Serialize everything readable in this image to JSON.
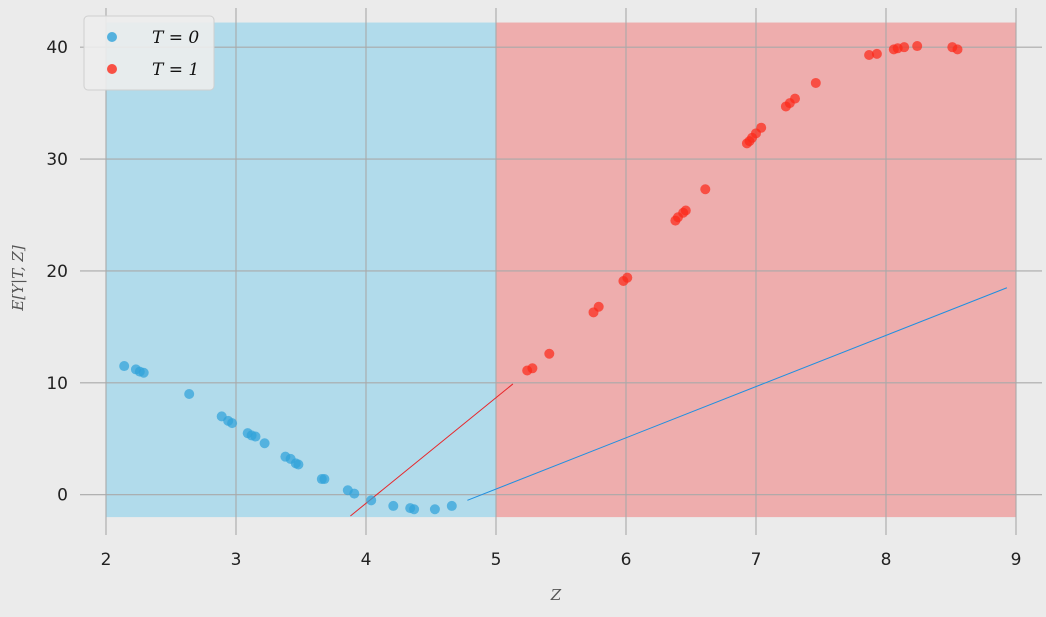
{
  "chart_data": {
    "type": "scatter",
    "xlabel": "Z",
    "ylabel": "E[Y|T, Z]",
    "xlim": [
      1.8,
      9.2
    ],
    "ylim": [
      -3.6,
      43.5
    ],
    "xticks": [
      2,
      3,
      4,
      5,
      6,
      7,
      8,
      9
    ],
    "yticks": [
      0,
      10,
      20,
      30,
      40
    ],
    "grid": true,
    "legend_position": "top-left",
    "regions": [
      {
        "name": "T=0 region",
        "x0": 2.0,
        "x1": 5.0,
        "y0": -2.0,
        "y1": 42.2,
        "color": "#87ceeb"
      },
      {
        "name": "T=1 region",
        "x0": 5.0,
        "x1": 9.0,
        "y0": -2.0,
        "y1": 42.2,
        "color": "#f08080"
      }
    ],
    "lines": [
      {
        "series": "T=1",
        "x": [
          3.88,
          5.13
        ],
        "y": [
          -1.9,
          9.9
        ],
        "color": "#e8262a"
      },
      {
        "series": "T=0",
        "x": [
          4.78,
          8.93
        ],
        "y": [
          -0.5,
          18.5
        ],
        "color": "#1f8fe0"
      }
    ],
    "series": [
      {
        "name": "T = 0",
        "color": "#30a2da",
        "points": [
          [
            2.14,
            11.5
          ],
          [
            2.23,
            11.2
          ],
          [
            2.26,
            11.0
          ],
          [
            2.29,
            10.9
          ],
          [
            2.64,
            9.0
          ],
          [
            2.89,
            7.0
          ],
          [
            2.94,
            6.6
          ],
          [
            2.97,
            6.4
          ],
          [
            3.09,
            5.5
          ],
          [
            3.12,
            5.3
          ],
          [
            3.15,
            5.2
          ],
          [
            3.22,
            4.6
          ],
          [
            3.38,
            3.4
          ],
          [
            3.42,
            3.2
          ],
          [
            3.46,
            2.8
          ],
          [
            3.48,
            2.7
          ],
          [
            3.66,
            1.4
          ],
          [
            3.68,
            1.4
          ],
          [
            3.86,
            0.4
          ],
          [
            3.91,
            0.1
          ],
          [
            4.04,
            -0.5
          ],
          [
            4.21,
            -1.0
          ],
          [
            4.34,
            -1.2
          ],
          [
            4.37,
            -1.3
          ],
          [
            4.53,
            -1.3
          ],
          [
            4.66,
            -1.0
          ]
        ]
      },
      {
        "name": "T = 1",
        "color": "#fc2a1a",
        "points": [
          [
            5.24,
            11.1
          ],
          [
            5.28,
            11.3
          ],
          [
            5.41,
            12.6
          ],
          [
            5.75,
            16.3
          ],
          [
            5.79,
            16.8
          ],
          [
            5.98,
            19.1
          ],
          [
            6.01,
            19.4
          ],
          [
            6.38,
            24.5
          ],
          [
            6.4,
            24.8
          ],
          [
            6.44,
            25.2
          ],
          [
            6.46,
            25.4
          ],
          [
            6.61,
            27.3
          ],
          [
            6.93,
            31.4
          ],
          [
            6.95,
            31.6
          ],
          [
            6.97,
            31.9
          ],
          [
            7.0,
            32.3
          ],
          [
            7.04,
            32.8
          ],
          [
            7.23,
            34.7
          ],
          [
            7.26,
            35.0
          ],
          [
            7.3,
            35.4
          ],
          [
            7.46,
            36.8
          ],
          [
            7.87,
            39.3
          ],
          [
            7.93,
            39.4
          ],
          [
            8.06,
            39.8
          ],
          [
            8.09,
            39.9
          ],
          [
            8.14,
            40.0
          ],
          [
            8.24,
            40.1
          ],
          [
            8.51,
            40.0
          ],
          [
            8.55,
            39.8
          ]
        ]
      }
    ]
  }
}
